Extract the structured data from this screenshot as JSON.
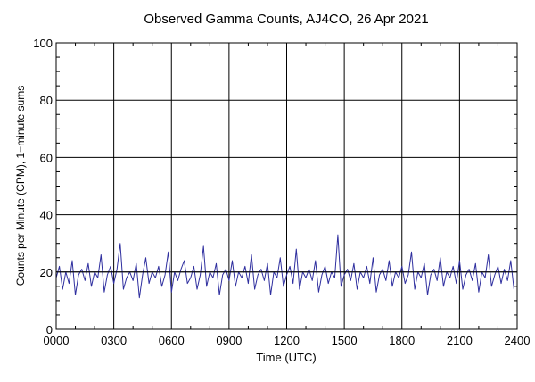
{
  "chart_data": {
    "type": "line",
    "title": "Observed Gamma Counts, AJ4CO, 26 Apr 2021",
    "xlabel": "Time (UTC)",
    "ylabel": "Counts per Minute (CPM), 1−minute sums",
    "x_ticks": [
      "0000",
      "0300",
      "0600",
      "0900",
      "1200",
      "1500",
      "1800",
      "2100",
      "2400"
    ],
    "y_ticks": [
      "0",
      "20",
      "40",
      "60",
      "80",
      "100"
    ],
    "xlim": [
      0,
      1440
    ],
    "ylim": [
      0,
      100
    ],
    "x_unit": "minutes since 0000 UTC",
    "reference_line": 20,
    "grid": true,
    "series": [
      {
        "color": "#2f2f9f",
        "x_start": 0,
        "x_step": 10,
        "values": [
          18,
          22,
          14,
          20,
          16,
          24,
          12,
          19,
          21,
          17,
          23,
          15,
          20,
          18,
          26,
          13,
          19,
          22,
          16,
          21,
          30,
          14,
          18,
          20,
          17,
          23,
          11,
          19,
          25,
          16,
          20,
          18,
          22,
          15,
          19,
          27,
          13,
          20,
          17,
          21,
          24,
          16,
          18,
          22,
          14,
          19,
          29,
          15,
          20,
          18,
          23,
          12,
          19,
          21,
          17,
          24,
          15,
          20,
          18,
          22,
          16,
          26,
          14,
          19,
          21,
          17,
          23,
          12,
          20,
          18,
          25,
          15,
          19,
          22,
          16,
          28,
          14,
          20,
          18,
          21,
          17,
          24,
          13,
          19,
          22,
          16,
          20,
          18,
          33,
          15,
          19,
          21,
          17,
          23,
          14,
          20,
          18,
          22,
          16,
          25,
          13,
          19,
          21,
          17,
          24,
          15,
          20,
          18,
          22,
          16,
          19,
          27,
          14,
          20,
          18,
          23,
          12,
          19,
          21,
          17,
          25,
          15,
          20,
          18,
          22,
          16,
          24,
          14,
          19,
          21,
          17,
          23,
          13,
          20,
          18,
          26,
          15,
          19,
          22,
          16,
          21,
          17,
          24,
          14
        ]
      }
    ]
  }
}
